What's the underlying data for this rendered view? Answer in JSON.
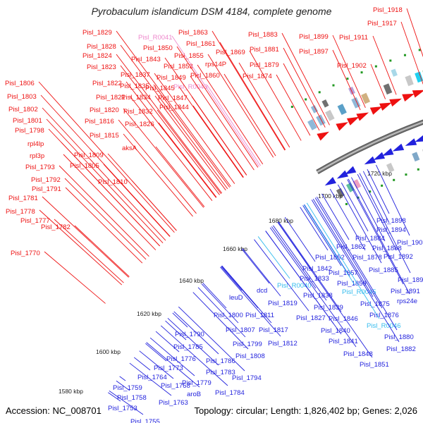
{
  "title": "Pyrobaculum islandicum DSM 4184, complete genome",
  "footer": {
    "accession": "Accession: NC_008701",
    "summary": "Topology: circular; Length: 1,826,402 bp; Genes: 2,026"
  },
  "colors": {
    "forward_gene": "#ee1111",
    "reverse_gene": "#2222dd",
    "rna_label": "#ee88cc",
    "reverse_rna_label": "#33bbee",
    "backbone": "#888888",
    "tick_dot": "#229922"
  },
  "scale_labels": [
    "1580 kbp",
    "1600 kbp",
    "1620 kbp",
    "1640 kbp",
    "1660 kbp",
    "1680 kbp",
    "1700 kbp",
    "1720 kbp"
  ],
  "upper_labels": [
    {
      "text": "Pisl_1918",
      "kind": "gene"
    },
    {
      "text": "Pisl_1917",
      "kind": "gene"
    },
    {
      "text": "Pisl_1911",
      "kind": "gene"
    },
    {
      "text": "Pisl_1899",
      "kind": "gene"
    },
    {
      "text": "Pisl_1897",
      "kind": "gene"
    },
    {
      "text": "Pisl_1902",
      "kind": "gene"
    },
    {
      "text": "Pisl_1883",
      "kind": "gene"
    },
    {
      "text": "Pisl_1881",
      "kind": "gene"
    },
    {
      "text": "Pisl_1879",
      "kind": "gene"
    },
    {
      "text": "Pisl_1874",
      "kind": "gene"
    },
    {
      "text": "Pisl_1869",
      "kind": "gene"
    },
    {
      "text": "rps14P",
      "kind": "gene"
    },
    {
      "text": "Pisl_1860",
      "kind": "gene"
    },
    {
      "text": "Pisl_R0043",
      "kind": "rna"
    },
    {
      "text": "Pisl_1863",
      "kind": "gene"
    },
    {
      "text": "Pisl_1861",
      "kind": "gene"
    },
    {
      "text": "Pisl_1855",
      "kind": "gene"
    },
    {
      "text": "Pisl_1853",
      "kind": "gene"
    },
    {
      "text": "Pisl_1849",
      "kind": "gene"
    },
    {
      "text": "Pisl_1845",
      "kind": "gene"
    },
    {
      "text": "Pisl_1847",
      "kind": "gene"
    },
    {
      "text": "Pisl_1844",
      "kind": "gene"
    },
    {
      "text": "Pisl_R0041",
      "kind": "rna"
    },
    {
      "text": "Pisl_1850",
      "kind": "gene"
    },
    {
      "text": "Pisl_1843",
      "kind": "gene"
    },
    {
      "text": "Pisl_1837",
      "kind": "gene"
    },
    {
      "text": "Pisl_1835",
      "kind": "gene"
    },
    {
      "text": "Pisl_1834",
      "kind": "gene"
    },
    {
      "text": "Pisl_1832",
      "kind": "gene"
    },
    {
      "text": "Pisl_1826",
      "kind": "gene"
    },
    {
      "text": "Pisl_1829",
      "kind": "gene"
    },
    {
      "text": "Pisl_1828",
      "kind": "gene"
    },
    {
      "text": "Pisl_1824",
      "kind": "gene"
    },
    {
      "text": "Pisl_1823",
      "kind": "gene"
    },
    {
      "text": "Pisl_1822",
      "kind": "gene"
    },
    {
      "text": "Pisl_1821",
      "kind": "gene"
    },
    {
      "text": "Pisl_1820",
      "kind": "gene"
    },
    {
      "text": "Pisl_1816",
      "kind": "gene"
    },
    {
      "text": "Pisl_1815",
      "kind": "gene"
    },
    {
      "text": "aksA",
      "kind": "gene"
    },
    {
      "text": "Pisl_1806",
      "kind": "gene"
    },
    {
      "text": "Pisl_1803",
      "kind": "gene"
    },
    {
      "text": "Pisl_1802",
      "kind": "gene"
    },
    {
      "text": "Pisl_1801",
      "kind": "gene"
    },
    {
      "text": "Pisl_1798",
      "kind": "gene"
    },
    {
      "text": "rpl4lp",
      "kind": "gene"
    },
    {
      "text": "rpl3p",
      "kind": "gene"
    },
    {
      "text": "Pisl_1809",
      "kind": "gene"
    },
    {
      "text": "Pisl_1805",
      "kind": "gene"
    },
    {
      "text": "Pisl_1793",
      "kind": "gene"
    },
    {
      "text": "Pisl_1810",
      "kind": "gene"
    },
    {
      "text": "Pisl_1792",
      "kind": "gene"
    },
    {
      "text": "Pisl_1791",
      "kind": "gene"
    },
    {
      "text": "Pisl_1781",
      "kind": "gene"
    },
    {
      "text": "Pisl_1778",
      "kind": "gene"
    },
    {
      "text": "Pisl_1777",
      "kind": "gene"
    },
    {
      "text": "Pisl_1782",
      "kind": "gene"
    },
    {
      "text": "Pisl_1770",
      "kind": "gene"
    }
  ],
  "lower_labels": [
    {
      "text": "Pisl_1898",
      "kind": "gene"
    },
    {
      "text": "Pisl_1894",
      "kind": "gene"
    },
    {
      "text": "Pisl_1903",
      "kind": "gene"
    },
    {
      "text": "Pisl_1884",
      "kind": "gene"
    },
    {
      "text": "Pisl_1888",
      "kind": "gene"
    },
    {
      "text": "Pisl_1862",
      "kind": "gene"
    },
    {
      "text": "Pisl_1892",
      "kind": "gene"
    },
    {
      "text": "Pisl_1852",
      "kind": "gene"
    },
    {
      "text": "Pisl_1878",
      "kind": "gene"
    },
    {
      "text": "Pisl_1885",
      "kind": "gene"
    },
    {
      "text": "Pisl_1842",
      "kind": "gene"
    },
    {
      "text": "Pisl_1857",
      "kind": "gene"
    },
    {
      "text": "Pisl_1896",
      "kind": "gene"
    },
    {
      "text": "Pisl_1833",
      "kind": "gene"
    },
    {
      "text": "Pisl_1859",
      "kind": "gene"
    },
    {
      "text": "Pisl_1891",
      "kind": "gene"
    },
    {
      "text": "Pisl_R0040",
      "kind": "rna"
    },
    {
      "text": "Pisl_R0045",
      "kind": "rna"
    },
    {
      "text": "dcd",
      "kind": "gene"
    },
    {
      "text": "Pisl_1838",
      "kind": "gene"
    },
    {
      "text": "leuD",
      "kind": "gene"
    },
    {
      "text": "Pisl_1819",
      "kind": "gene"
    },
    {
      "text": "Pisl_1839",
      "kind": "gene"
    },
    {
      "text": "Pisl_1875",
      "kind": "gene"
    },
    {
      "text": "rps24e",
      "kind": "gene"
    },
    {
      "text": "Pisl_1800",
      "kind": "gene"
    },
    {
      "text": "Pisl_1811",
      "kind": "gene"
    },
    {
      "text": "Pisl_1827",
      "kind": "gene"
    },
    {
      "text": "Pisl_1846",
      "kind": "gene"
    },
    {
      "text": "Pisl_1876",
      "kind": "gene"
    },
    {
      "text": "Pisl_R0046",
      "kind": "rna"
    },
    {
      "text": "Pisl_1807",
      "kind": "gene"
    },
    {
      "text": "Pisl_1817",
      "kind": "gene"
    },
    {
      "text": "Pisl_1840",
      "kind": "gene"
    },
    {
      "text": "Pisl_1880",
      "kind": "gene"
    },
    {
      "text": "Pisl_1790",
      "kind": "gene"
    },
    {
      "text": "Pisl_1799",
      "kind": "gene"
    },
    {
      "text": "Pisl_1812",
      "kind": "gene"
    },
    {
      "text": "Pisl_1841",
      "kind": "gene"
    },
    {
      "text": "Pisl_1882",
      "kind": "gene"
    },
    {
      "text": "Pisl_1785",
      "kind": "gene"
    },
    {
      "text": "Pisl_1776",
      "kind": "gene"
    },
    {
      "text": "Pisl_1786",
      "kind": "gene"
    },
    {
      "text": "Pisl_1808",
      "kind": "gene"
    },
    {
      "text": "Pisl_1848",
      "kind": "gene"
    },
    {
      "text": "Pisl_1773",
      "kind": "gene"
    },
    {
      "text": "Pisl_1783",
      "kind": "gene"
    },
    {
      "text": "Pisl_1851",
      "kind": "gene"
    },
    {
      "text": "Pisl_1764",
      "kind": "gene"
    },
    {
      "text": "Pisl_1794",
      "kind": "gene"
    },
    {
      "text": "Pisl_1768",
      "kind": "gene"
    },
    {
      "text": "Pisl_1779",
      "kind": "gene"
    },
    {
      "text": "Pisl_1759",
      "kind": "gene"
    },
    {
      "text": "Pisl_1784",
      "kind": "gene"
    },
    {
      "text": "Pisl_1758",
      "kind": "gene"
    },
    {
      "text": "aroB",
      "kind": "gene"
    },
    {
      "text": "Pisl_1763",
      "kind": "gene"
    },
    {
      "text": "Pisl_1753",
      "kind": "gene"
    },
    {
      "text": "Pisl_1755",
      "kind": "gene"
    }
  ]
}
